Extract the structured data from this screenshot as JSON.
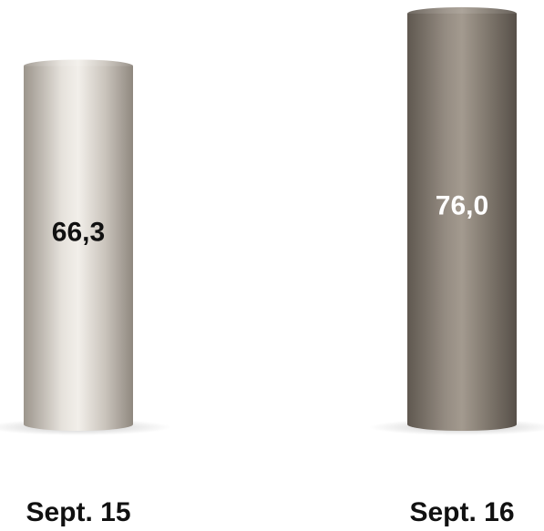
{
  "chart_data": {
    "type": "bar",
    "style": "cylinder",
    "categories": [
      "Sept. 15",
      "Sept. 16"
    ],
    "values": [
      66.3,
      76.0
    ],
    "value_labels": [
      "66,3",
      "76,0"
    ],
    "title": "",
    "xlabel": "",
    "ylabel": "",
    "ylim": [
      0,
      77
    ],
    "grid": false,
    "legend": "none",
    "colors": {
      "bar_light": [
        "#9c958c",
        "#e6e2dc",
        "#f2efea",
        "#c9c3bb",
        "#8f887f"
      ],
      "bar_dark": [
        "#5f5850",
        "#958c82",
        "#a39a8f",
        "#7d756b",
        "#575049"
      ],
      "label_on_light": "#111111",
      "label_on_dark": "#ffffff"
    }
  }
}
